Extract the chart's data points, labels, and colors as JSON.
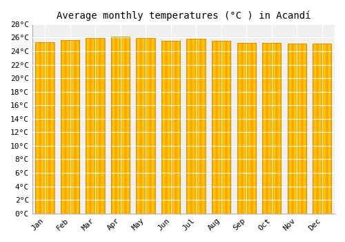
{
  "title": "Average monthly temperatures (°C ) in Acandí",
  "months": [
    "Jan",
    "Feb",
    "Mar",
    "Apr",
    "May",
    "Jun",
    "Jul",
    "Aug",
    "Sep",
    "Oct",
    "Nov",
    "Dec"
  ],
  "temperatures": [
    25.3,
    25.6,
    25.9,
    26.1,
    25.9,
    25.5,
    25.8,
    25.5,
    25.2,
    25.2,
    25.1,
    25.1
  ],
  "bar_color": "#FFA500",
  "bar_edge_color": "#CC8800",
  "background_color": "#FFFFFF",
  "plot_bg_color": "#F0F0F0",
  "ylim": [
    0,
    28
  ],
  "ytick_step": 2,
  "grid_color": "#FFFFFF",
  "title_fontsize": 10,
  "tick_fontsize": 8,
  "font_family": "monospace"
}
